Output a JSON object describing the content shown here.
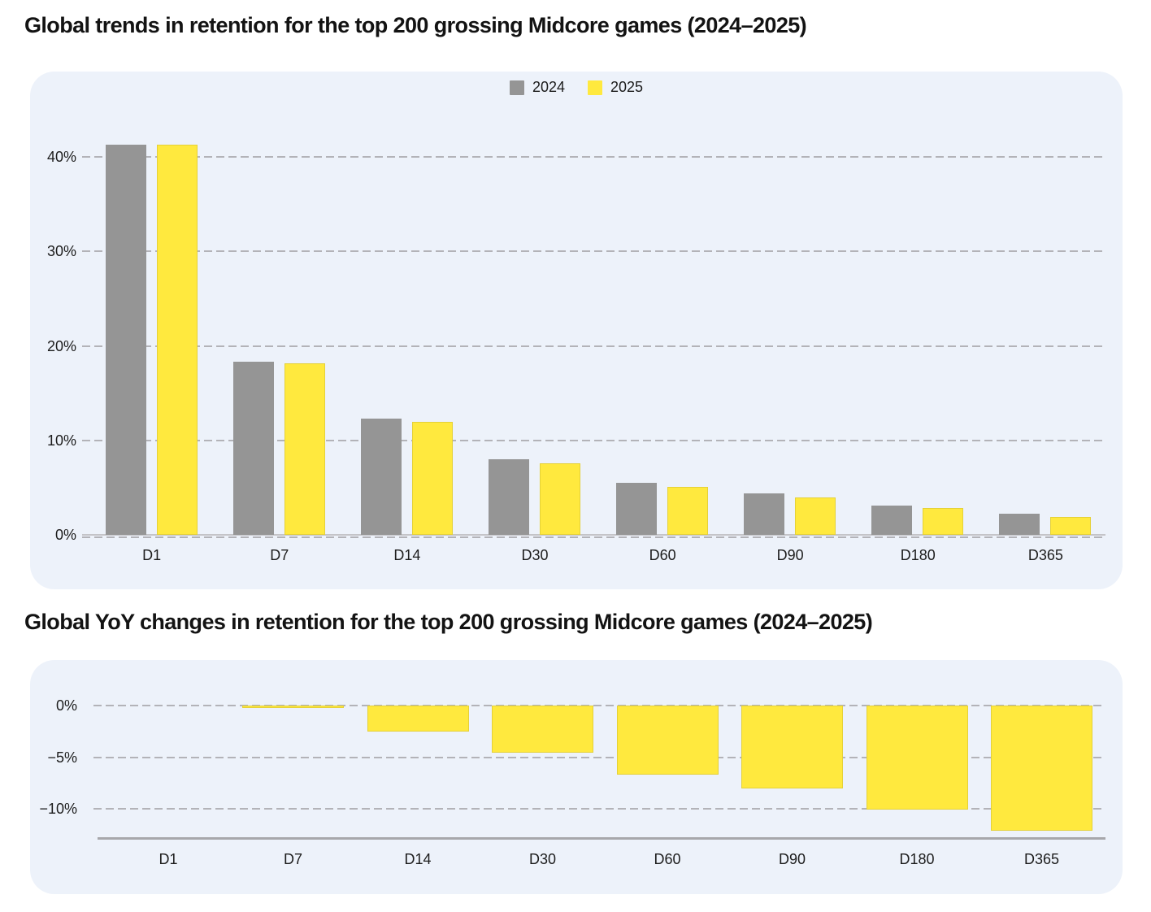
{
  "chart_data": [
    {
      "type": "bar",
      "title": "Global trends in retention for the top 200 grossing Midcore games (2024–2025)",
      "categories": [
        "D1",
        "D7",
        "D14",
        "D30",
        "D60",
        "D90",
        "D180",
        "D365"
      ],
      "series": [
        {
          "name": "2024",
          "color": "#959595",
          "values": [
            41.3,
            18.3,
            12.3,
            8.0,
            5.5,
            4.4,
            3.1,
            2.2
          ]
        },
        {
          "name": "2025",
          "color": "#FFE93E",
          "values": [
            41.3,
            18.2,
            12.0,
            7.6,
            5.1,
            4.0,
            2.8,
            1.9
          ]
        }
      ],
      "yticks": [
        0,
        10,
        20,
        30,
        40
      ],
      "ytick_labels": [
        "0%",
        "10%",
        "20%",
        "30%",
        "40%"
      ],
      "ylim": [
        0,
        44
      ],
      "grid": "horizontal-dashed",
      "legend_position": "top-center",
      "panel_color": "#edf2fa"
    },
    {
      "type": "bar",
      "title": "Global YoY changes in retention for the top 200 grossing Midcore games (2024–2025)",
      "categories": [
        "D1",
        "D7",
        "D14",
        "D30",
        "D60",
        "D90",
        "D180",
        "D365"
      ],
      "series": [
        {
          "color": "#FFE93E",
          "values": [
            0,
            -0.2,
            -2.5,
            -4.6,
            -6.7,
            -8.0,
            -10.1,
            -12.1
          ]
        }
      ],
      "yticks": [
        0,
        -5,
        -10
      ],
      "ytick_labels": [
        "0%",
        "−5%",
        "−10%"
      ],
      "ylim": [
        -13.5,
        0
      ],
      "grid": "horizontal-dashed",
      "legend_position": "none",
      "panel_color": "#edf2fa"
    }
  ]
}
